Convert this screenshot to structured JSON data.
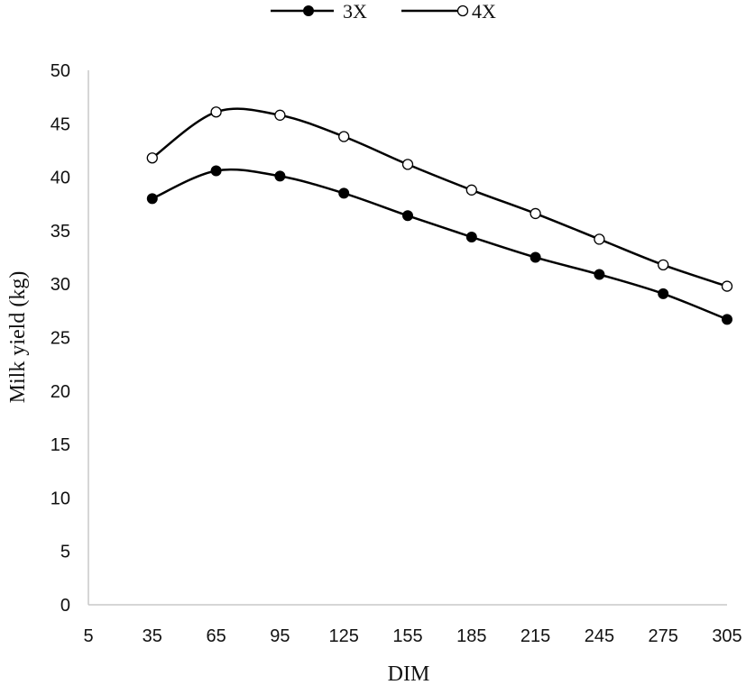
{
  "chart_data": {
    "type": "line",
    "xlabel": "DIM",
    "ylabel": "Milk yield (kg)",
    "x": [
      35,
      65,
      95,
      125,
      155,
      185,
      215,
      245,
      275,
      305
    ],
    "xticks": [
      5,
      35,
      65,
      95,
      125,
      155,
      185,
      215,
      245,
      275,
      305
    ],
    "yticks": [
      0,
      5,
      10,
      15,
      20,
      25,
      30,
      35,
      40,
      45,
      50
    ],
    "xlim": [
      5,
      305
    ],
    "ylim": [
      0,
      50
    ],
    "grid": false,
    "legend_position": "top-center",
    "series": [
      {
        "name": "3X",
        "marker": "filled-circle",
        "color": "#000000",
        "values": [
          38.0,
          40.6,
          40.1,
          38.5,
          36.4,
          34.4,
          32.5,
          30.9,
          29.1,
          26.7
        ]
      },
      {
        "name": "4X",
        "marker": "open-circle",
        "color": "#000000",
        "values": [
          41.8,
          46.1,
          45.8,
          43.8,
          41.2,
          38.8,
          36.6,
          34.2,
          31.8,
          29.8
        ]
      }
    ]
  }
}
